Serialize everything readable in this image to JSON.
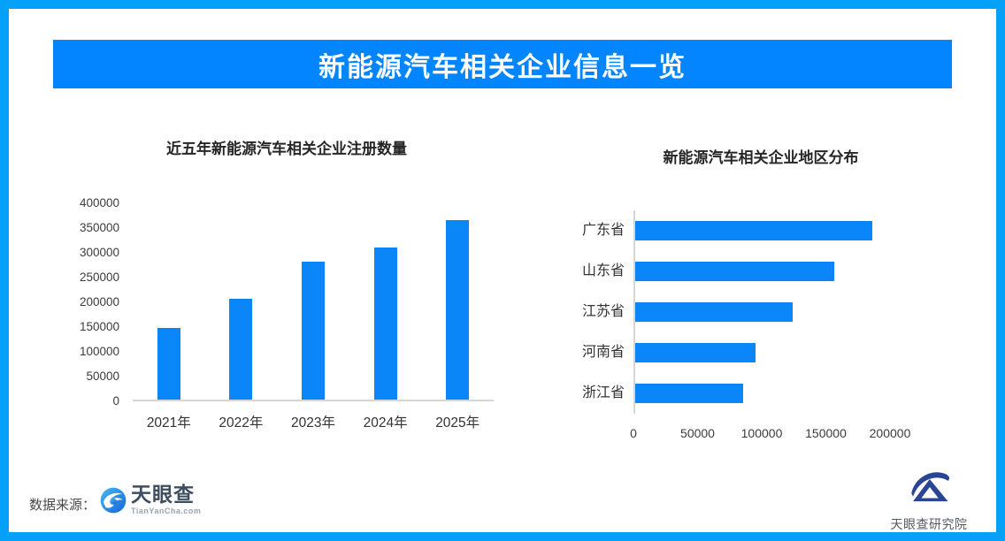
{
  "banner": {
    "title": "新能源汽车相关企业信息一览"
  },
  "colors": {
    "page_border": "#05a0f8",
    "banner_bg": "#0385ff",
    "banner_text": "#ffffff",
    "bar_blue": "#0a86f9",
    "axis_line": "#d6d6d6",
    "tick_text": "#3c3c3c",
    "title_text": "#262626",
    "tianyancha_icon_blue": "#1e88e5",
    "research_icon_navy": "#2a4596"
  },
  "chart_data": [
    {
      "type": "bar",
      "orientation": "vertical",
      "title": "近五年新能源汽车相关企业注册数量",
      "categories": [
        "2021年",
        "2022年",
        "2023年",
        "2024年",
        "2025年"
      ],
      "values": [
        145000,
        203000,
        278000,
        307000,
        362000
      ],
      "xlabel": "",
      "ylabel": "",
      "ylim": [
        0,
        400000
      ],
      "yticks": [
        0,
        50000,
        100000,
        150000,
        200000,
        250000,
        300000,
        350000,
        400000
      ],
      "grid": false,
      "legend": "none",
      "bar_color": "#0a86f9"
    },
    {
      "type": "bar",
      "orientation": "horizontal",
      "title": "新能源汽车相关企业地区分布",
      "categories": [
        "广东省",
        "山东省",
        "江苏省",
        "河南省",
        "浙江省"
      ],
      "values": [
        185000,
        155000,
        123000,
        94000,
        84000
      ],
      "xlabel": "",
      "ylabel": "",
      "xlim": [
        0,
        260000
      ],
      "xticks": [
        0,
        50000,
        100000,
        150000,
        200000
      ],
      "grid": false,
      "legend": "none",
      "bar_color": "#0a86f9"
    }
  ],
  "footer": {
    "source_label": "数据来源：",
    "tianyancha": {
      "name": "天眼查",
      "domain": "TianYanCha.com"
    },
    "research": {
      "name": "天眼查研究院"
    }
  }
}
